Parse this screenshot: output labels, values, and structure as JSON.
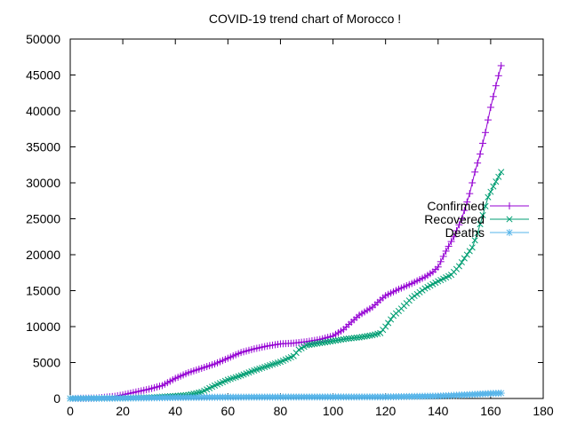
{
  "chart_data": {
    "type": "line",
    "title": "COVID-19 trend chart of Morocco !",
    "xlabel": "",
    "ylabel": "",
    "xlim": [
      0,
      180
    ],
    "ylim": [
      0,
      50000
    ],
    "x_ticks": [
      0,
      20,
      40,
      60,
      80,
      100,
      120,
      140,
      160,
      180
    ],
    "y_ticks": [
      0,
      5000,
      10000,
      15000,
      20000,
      25000,
      30000,
      35000,
      40000,
      45000,
      50000
    ],
    "grid": false,
    "legend_position": "right",
    "series": [
      {
        "name": "Confirmed",
        "color": "#9400d3",
        "marker": "plus",
        "points": [
          [
            0,
            0
          ],
          [
            10,
            50
          ],
          [
            17,
            300
          ],
          [
            20,
            500
          ],
          [
            25,
            900
          ],
          [
            30,
            1300
          ],
          [
            35,
            1800
          ],
          [
            40,
            2800
          ],
          [
            45,
            3600
          ],
          [
            50,
            4200
          ],
          [
            55,
            4800
          ],
          [
            60,
            5600
          ],
          [
            65,
            6400
          ],
          [
            70,
            6900
          ],
          [
            75,
            7300
          ],
          [
            80,
            7600
          ],
          [
            85,
            7700
          ],
          [
            90,
            7900
          ],
          [
            95,
            8200
          ],
          [
            100,
            8700
          ],
          [
            104,
            9600
          ],
          [
            106,
            10300
          ],
          [
            110,
            11600
          ],
          [
            115,
            12700
          ],
          [
            118,
            13700
          ],
          [
            120,
            14300
          ],
          [
            125,
            15200
          ],
          [
            130,
            16000
          ],
          [
            135,
            16900
          ],
          [
            138,
            17600
          ],
          [
            140,
            18300
          ],
          [
            143,
            20500
          ],
          [
            146,
            22500
          ],
          [
            149,
            25000
          ],
          [
            152,
            28500
          ],
          [
            154,
            31500
          ],
          [
            156,
            34000
          ],
          [
            158,
            37000
          ],
          [
            160,
            40500
          ],
          [
            162,
            43500
          ],
          [
            164,
            46300
          ]
        ]
      },
      {
        "name": "Recovered",
        "color": "#009e73",
        "marker": "cross",
        "points": [
          [
            0,
            0
          ],
          [
            20,
            50
          ],
          [
            30,
            150
          ],
          [
            40,
            350
          ],
          [
            45,
            500
          ],
          [
            50,
            900
          ],
          [
            55,
            1800
          ],
          [
            60,
            2600
          ],
          [
            65,
            3200
          ],
          [
            70,
            3900
          ],
          [
            75,
            4500
          ],
          [
            80,
            5100
          ],
          [
            85,
            5900
          ],
          [
            87,
            6800
          ],
          [
            90,
            7400
          ],
          [
            95,
            7700
          ],
          [
            100,
            8000
          ],
          [
            105,
            8300
          ],
          [
            110,
            8500
          ],
          [
            115,
            8800
          ],
          [
            118,
            9100
          ],
          [
            120,
            10000
          ],
          [
            123,
            11500
          ],
          [
            126,
            12500
          ],
          [
            130,
            14000
          ],
          [
            135,
            15300
          ],
          [
            140,
            16300
          ],
          [
            145,
            17200
          ],
          [
            148,
            18400
          ],
          [
            150,
            19500
          ],
          [
            153,
            21000
          ],
          [
            155,
            23000
          ],
          [
            157,
            25500
          ],
          [
            159,
            28000
          ],
          [
            161,
            29500
          ],
          [
            164,
            31500
          ]
        ]
      },
      {
        "name": "Deaths",
        "color": "#56b4e9",
        "marker": "star",
        "points": [
          [
            0,
            0
          ],
          [
            20,
            50
          ],
          [
            40,
            130
          ],
          [
            60,
            180
          ],
          [
            80,
            200
          ],
          [
            100,
            210
          ],
          [
            120,
            220
          ],
          [
            140,
            330
          ],
          [
            150,
            500
          ],
          [
            160,
            700
          ],
          [
            164,
            740
          ]
        ]
      }
    ]
  }
}
